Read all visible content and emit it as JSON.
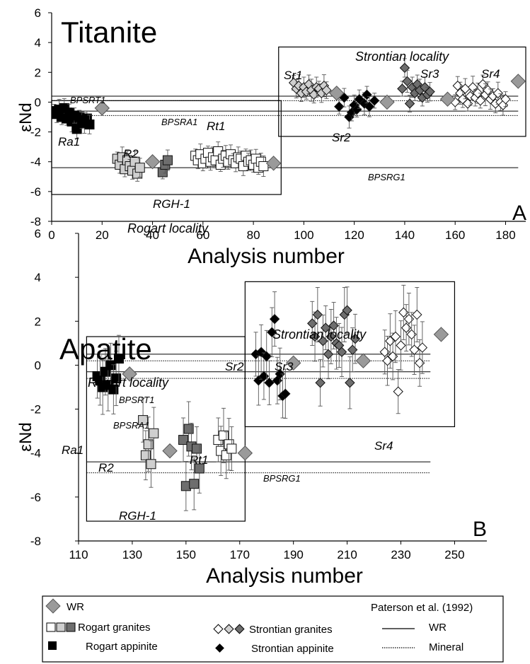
{
  "colors": {
    "rogart_granite_light": "#ffffff",
    "rogart_granite_mid": "#cfcfcf",
    "rogart_granite_dark": "#6e6e6e",
    "appinite": "#000000",
    "wr": "#9a9a9a",
    "axis": "#000000"
  },
  "chart_data": [
    {
      "type": "scatter",
      "title": "Titanite",
      "panel_label": "A",
      "xlabel": "Analysis number",
      "ylabel": "εNd",
      "xlim": [
        0,
        188
      ],
      "ylim": [
        -8,
        6
      ],
      "xticks": [
        "0",
        "20",
        "40",
        "60",
        "80",
        "100",
        "120",
        "140",
        "160",
        "180"
      ],
      "yticks": [
        "-8",
        "-6",
        "-4",
        "-2",
        "0",
        "2",
        "4",
        "6"
      ],
      "ref_lines": [
        {
          "name": "BPSRT1",
          "style": "solid",
          "y": 0.4,
          "x": [
            0,
            185
          ]
        },
        {
          "name": "",
          "style": "dotted",
          "y": 0.1,
          "x": [
            0,
            185
          ]
        },
        {
          "name": "BPSRA1",
          "style": "solid",
          "y": -0.6,
          "x": [
            0,
            185
          ]
        },
        {
          "name": "",
          "style": "dotted",
          "y": -0.9,
          "x": [
            0,
            185
          ]
        },
        {
          "name": "BPSRG1",
          "style": "solid",
          "y": -4.4,
          "x": [
            0,
            185
          ]
        }
      ],
      "boxes": [
        {
          "label": "Rogart locality",
          "x": [
            0,
            91
          ],
          "y": [
            -6.2,
            0.1
          ]
        },
        {
          "label": "Strontian locality",
          "x": [
            90,
            188
          ],
          "y": [
            -2.3,
            3.7
          ]
        }
      ],
      "annotations": [
        "Ra1",
        "R2",
        "RGH-1",
        "Rt1",
        "Sr1",
        "Sr2",
        "Sr3",
        "Sr4"
      ],
      "series": [
        {
          "group": "Rogart appinite",
          "marker": "square",
          "fill": "appinite",
          "x": [
            1,
            2,
            3,
            4,
            5,
            6,
            7,
            8,
            9,
            10,
            11,
            12,
            13,
            14,
            15
          ],
          "y": [
            -0.6,
            -0.8,
            -0.5,
            -1.0,
            -0.4,
            -1.1,
            -0.7,
            -1.3,
            -0.9,
            -1.8,
            -1.0,
            -1.2,
            -1.4,
            -1.1,
            -1.5
          ]
        },
        {
          "group": "Rogart granites R2",
          "marker": "square",
          "fill": "rogart_granite_mid",
          "x": [
            26,
            27,
            28,
            29,
            30,
            31,
            32,
            33,
            34,
            35
          ],
          "y": [
            -3.8,
            -4.2,
            -3.7,
            -4.5,
            -3.9,
            -4.3,
            -4.6,
            -4.0,
            -4.8,
            -4.4
          ]
        },
        {
          "group": "Rogart granites RGH-1",
          "marker": "square",
          "fill": "rogart_granite_dark",
          "x": [
            44,
            45,
            46
          ],
          "y": [
            -4.7,
            -4.2,
            -3.9
          ]
        },
        {
          "group": "Rogart granites Rt1",
          "marker": "square",
          "fill": "rogart_granite_light",
          "x": [
            57,
            58,
            59,
            60,
            61,
            62,
            63,
            64,
            65,
            66,
            67,
            68,
            69,
            70,
            71,
            72,
            73,
            74,
            75,
            76,
            77,
            78,
            79,
            80,
            81,
            82,
            83,
            84
          ],
          "y": [
            -3.6,
            -3.9,
            -3.5,
            -4.1,
            -3.8,
            -3.4,
            -4.0,
            -3.7,
            -3.9,
            -3.3,
            -4.2,
            -3.8,
            -3.6,
            -4.0,
            -3.5,
            -3.9,
            -4.1,
            -3.7,
            -3.8,
            -4.3,
            -3.6,
            -4.0,
            -3.9,
            -4.2,
            -3.8,
            -4.4,
            -4.0,
            -4.3
          ]
        },
        {
          "group": "Strontian granites Sr1",
          "marker": "diamond",
          "fill": "rogart_granite_mid",
          "x": [
            96,
            97,
            98,
            99,
            100,
            101,
            102,
            103,
            104,
            105,
            106,
            107,
            108,
            109
          ],
          "y": [
            1.3,
            0.9,
            1.1,
            0.6,
            1.0,
            0.7,
            1.2,
            0.8,
            0.5,
            1.0,
            0.9,
            0.6,
            1.1,
            0.8
          ]
        },
        {
          "group": "Strontian appinite Sr2",
          "marker": "diamond",
          "fill": "appinite",
          "x": [
            114,
            116,
            118,
            119,
            120,
            121,
            122,
            124,
            125,
            126,
            128
          ],
          "y": [
            -0.3,
            0.3,
            -1.0,
            -0.7,
            -0.2,
            -0.5,
            0.2,
            -0.1,
            0.5,
            -0.3,
            0.1
          ]
        },
        {
          "group": "Strontian granites Sr3",
          "marker": "diamond",
          "fill": "rogart_granite_dark",
          "x": [
            139,
            140,
            141,
            142,
            143,
            144,
            145,
            146,
            147,
            148,
            149,
            150
          ],
          "y": [
            0.9,
            2.3,
            1.4,
            -0.1,
            1.0,
            0.6,
            1.2,
            0.8,
            0.3,
            1.0,
            0.5,
            0.7
          ]
        },
        {
          "group": "Strontian granites Sr4",
          "marker": "diamond",
          "fill": "rogart_granite_light",
          "x": [
            160,
            161,
            162,
            163,
            164,
            165,
            166,
            167,
            168,
            169,
            170,
            171,
            172,
            173,
            174,
            175,
            176,
            177,
            178,
            179,
            180
          ],
          "y": [
            0.0,
            1.1,
            0.6,
            0.2,
            0.9,
            -0.1,
            0.4,
            1.0,
            0.3,
            0.6,
            0.1,
            1.2,
            0.5,
            0.8,
            0.2,
            0.4,
            -0.1,
            0.6,
            0.0,
            -0.2,
            0.2
          ]
        },
        {
          "group": "WR",
          "marker": "diamond",
          "fill": "wr",
          "x": [
            20,
            40,
            88,
            113,
            133,
            157,
            185
          ],
          "y": [
            -0.4,
            -4.0,
            -4.1,
            0.6,
            0.0,
            0.2,
            1.4
          ]
        }
      ]
    },
    {
      "type": "scatter",
      "title": "Apatite",
      "panel_label": "B",
      "xlabel": "Analysis number",
      "ylabel": "εNd",
      "xlim": [
        110,
        262
      ],
      "ylim": [
        -8,
        6
      ],
      "xticks": [
        "110",
        "130",
        "150",
        "170",
        "190",
        "210",
        "230",
        "250"
      ],
      "yticks": [
        "-8",
        "-6",
        "-4",
        "-2",
        "0",
        "2",
        "4",
        "6"
      ],
      "ref_lines": [
        {
          "name": "BPSRT1",
          "style": "solid",
          "y": 0.5,
          "x": [
            113,
            241
          ]
        },
        {
          "name": "",
          "style": "dotted",
          "y": 0.2,
          "x": [
            113,
            241
          ]
        },
        {
          "name": "BPSRA1",
          "style": "solid",
          "y": -0.3,
          "x": [
            113,
            241
          ]
        },
        {
          "name": "",
          "style": "dotted",
          "y": -0.6,
          "x": [
            113,
            241
          ]
        },
        {
          "name": "BPSRG1",
          "style": "solid",
          "y": -4.4,
          "x": [
            113,
            241
          ]
        },
        {
          "name": "",
          "style": "dotted",
          "y": -4.9,
          "x": [
            113,
            241
          ]
        }
      ],
      "boxes": [
        {
          "label": "Rogart locality",
          "x": [
            113,
            172
          ],
          "y": [
            -7.1,
            1.3
          ]
        },
        {
          "label": "Strontian locality",
          "x": [
            172,
            250
          ],
          "y": [
            -2.8,
            3.8
          ]
        }
      ],
      "annotations": [
        "Ra1",
        "R2",
        "RGH-1",
        "Rt1",
        "Sr2",
        "Sr3",
        "Sr4"
      ],
      "series": [
        {
          "group": "Rogart appinite",
          "marker": "square",
          "fill": "appinite",
          "x": [
            117,
            118,
            119,
            120,
            121,
            122,
            123,
            124,
            125
          ],
          "y": [
            -0.5,
            -0.7,
            -1.0,
            -0.3,
            -0.9,
            0.0,
            -1.1,
            -0.6,
            0.3
          ]
        },
        {
          "group": "Rogart granites R2",
          "marker": "square",
          "fill": "rogart_granite_mid",
          "x": [
            134,
            135,
            136,
            137,
            138
          ],
          "y": [
            -2.5,
            -4.1,
            -3.6,
            -4.5,
            -3.1
          ]
        },
        {
          "group": "Rogart granites RGH-1",
          "marker": "square",
          "fill": "rogart_granite_dark",
          "x": [
            149,
            150,
            151,
            152,
            153,
            154,
            155
          ],
          "y": [
            -3.4,
            -5.5,
            -2.9,
            -3.7,
            -5.4,
            -3.8,
            -4.7
          ]
        },
        {
          "group": "Rogart granites Rt1",
          "marker": "square",
          "fill": "rogart_granite_light",
          "x": [
            162,
            163,
            164,
            165,
            166,
            167
          ],
          "y": [
            -3.4,
            -3.9,
            -3.2,
            -4.1,
            -3.6,
            -3.8
          ]
        },
        {
          "group": "Strontian appinite Sr2",
          "marker": "diamond",
          "fill": "appinite",
          "x": [
            176,
            177,
            178,
            179,
            180,
            181,
            182,
            183,
            184,
            185,
            186,
            187
          ],
          "y": [
            0.5,
            -0.7,
            0.6,
            -0.5,
            0.4,
            -0.8,
            1.5,
            2.1,
            -0.7,
            -0.4,
            -1.4,
            -1.3
          ]
        },
        {
          "group": "Strontian granites Sr3",
          "marker": "diamond",
          "fill": "rogart_granite_dark",
          "x": [
            197,
            198,
            199,
            200,
            201,
            202,
            203,
            204,
            205,
            206,
            207,
            208,
            209,
            210,
            211,
            212,
            213
          ],
          "y": [
            1.9,
            1.3,
            2.3,
            -0.8,
            1.1,
            1.7,
            0.5,
            1.3,
            1.8,
            1.0,
            0.9,
            0.6,
            2.3,
            2.5,
            -0.8,
            0.7,
            1.2
          ]
        },
        {
          "group": "Strontian granites Sr4",
          "marker": "diamond",
          "fill": "rogart_granite_light",
          "x": [
            224,
            225,
            226,
            227,
            228,
            229,
            230,
            231,
            232,
            233,
            234,
            235,
            236,
            237,
            238
          ],
          "y": [
            0.6,
            0.2,
            1.1,
            0.4,
            1.3,
            -1.2,
            0.9,
            2.4,
            1.7,
            2.1,
            1.4,
            0.7,
            2.3,
            0.1,
            0.8
          ]
        },
        {
          "group": "WR",
          "marker": "diamond",
          "fill": "wr",
          "x": [
            129,
            144,
            172,
            190,
            216,
            245
          ],
          "y": [
            -0.4,
            -3.9,
            -4.0,
            0.1,
            0.2,
            1.4
          ]
        }
      ]
    }
  ],
  "legend": {
    "wr_label": "WR",
    "rogart_granites_label": "Rogart granites",
    "rogart_appinite_label": "Rogart appinite",
    "strontian_granites_label": "Strontian granites",
    "strontian_appinite_label": "Strontian appinite",
    "reference_title": "Paterson et al. (1992)",
    "ref_wr_label": "WR",
    "ref_mineral_label": "Mineral"
  }
}
